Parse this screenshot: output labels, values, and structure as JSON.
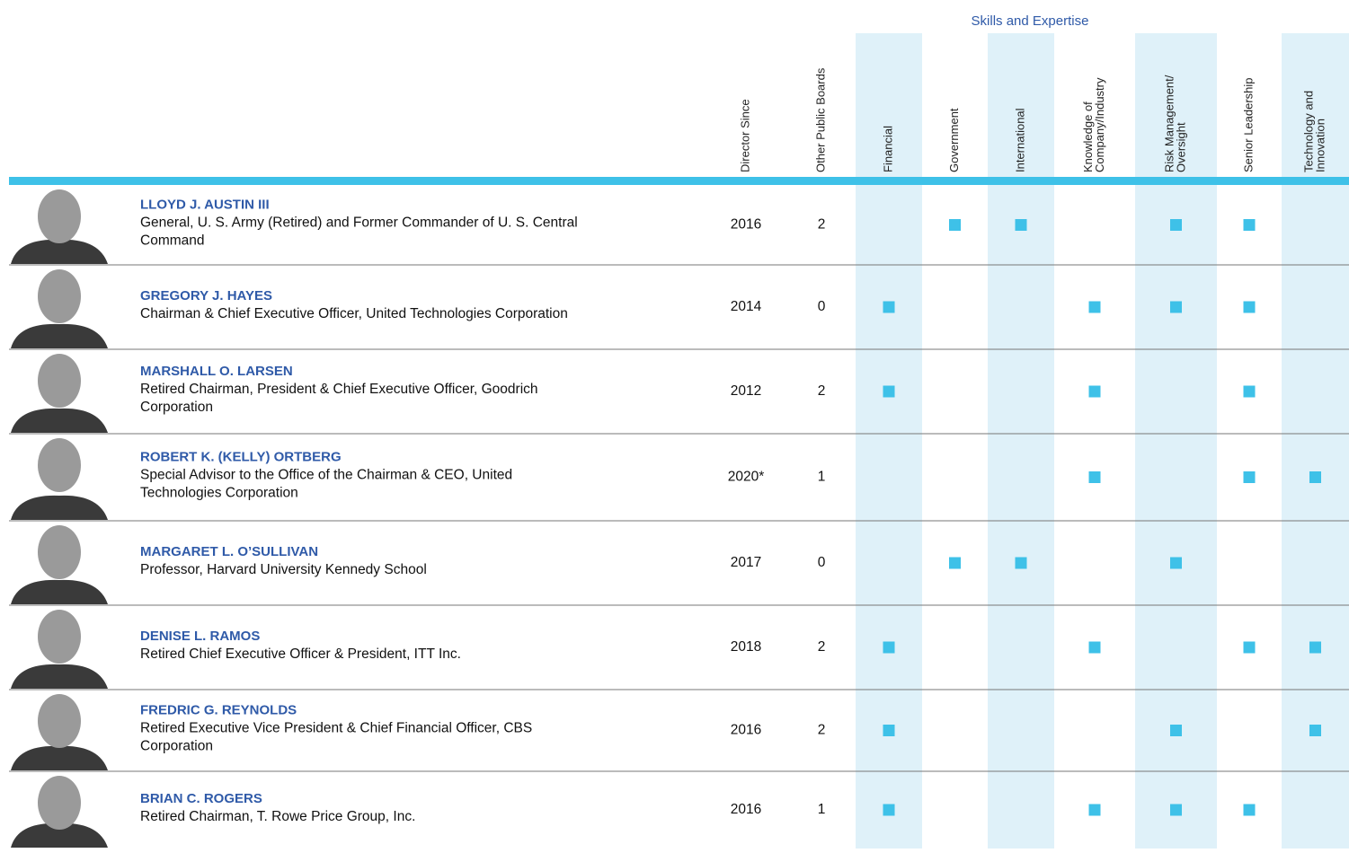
{
  "header": {
    "group_title": "Skills and Expertise"
  },
  "columns": {
    "since": [
      "Director Since"
    ],
    "boards": [
      "Other Public Boards"
    ],
    "skills": [
      [
        "Financial"
      ],
      [
        "Government"
      ],
      [
        "International"
      ],
      [
        "Knowledge of",
        "Company/Industry"
      ],
      [
        "Risk Management/",
        "Oversight"
      ],
      [
        "Senior Leadership"
      ],
      [
        "Technology and",
        "Innovation"
      ]
    ]
  },
  "rows": [
    {
      "name": "LLOYD J. AUSTIN III",
      "title": [
        "General, U. S. Army (Retired) and Former Commander of U. S. Central",
        "Command"
      ],
      "since": "2016",
      "boards": "2",
      "skills": [
        false,
        true,
        true,
        false,
        true,
        true,
        false
      ]
    },
    {
      "name": "GREGORY J. HAYES",
      "title": [
        "Chairman & Chief Executive Officer, United Technologies Corporation"
      ],
      "since": "2014",
      "boards": "0",
      "skills": [
        true,
        false,
        false,
        true,
        true,
        true,
        false
      ]
    },
    {
      "name": "MARSHALL O. LARSEN",
      "title": [
        "Retired Chairman, President & Chief Executive Officer, Goodrich",
        "Corporation"
      ],
      "since": "2012",
      "boards": "2",
      "skills": [
        true,
        false,
        false,
        true,
        false,
        true,
        false
      ]
    },
    {
      "name": "ROBERT K. (KELLY) ORTBERG",
      "title": [
        "Special Advisor to the Office of the Chairman & CEO, United",
        "Technologies Corporation"
      ],
      "since": "2020*",
      "boards": "1",
      "skills": [
        false,
        false,
        false,
        true,
        false,
        true,
        true
      ]
    },
    {
      "name": "MARGARET L. O’SULLIVAN",
      "title": [
        "Professor, Harvard University Kennedy School"
      ],
      "since": "2017",
      "boards": "0",
      "skills": [
        false,
        true,
        true,
        false,
        true,
        false,
        false
      ]
    },
    {
      "name": "DENISE L. RAMOS",
      "title": [
        "Retired Chief Executive Officer & President, ITT Inc."
      ],
      "since": "2018",
      "boards": "2",
      "skills": [
        true,
        false,
        false,
        true,
        false,
        true,
        true
      ]
    },
    {
      "name": "FREDRIC G. REYNOLDS",
      "title": [
        "Retired Executive Vice President & Chief Financial Officer, CBS",
        "Corporation"
      ],
      "since": "2016",
      "boards": "2",
      "skills": [
        true,
        false,
        false,
        false,
        true,
        false,
        true
      ]
    },
    {
      "name": "BRIAN C. ROGERS",
      "title": [
        "Retired Chairman, T. Rowe Price Group, Inc."
      ],
      "since": "2016",
      "boards": "1",
      "skills": [
        true,
        false,
        false,
        true,
        true,
        true,
        false
      ]
    }
  ]
}
